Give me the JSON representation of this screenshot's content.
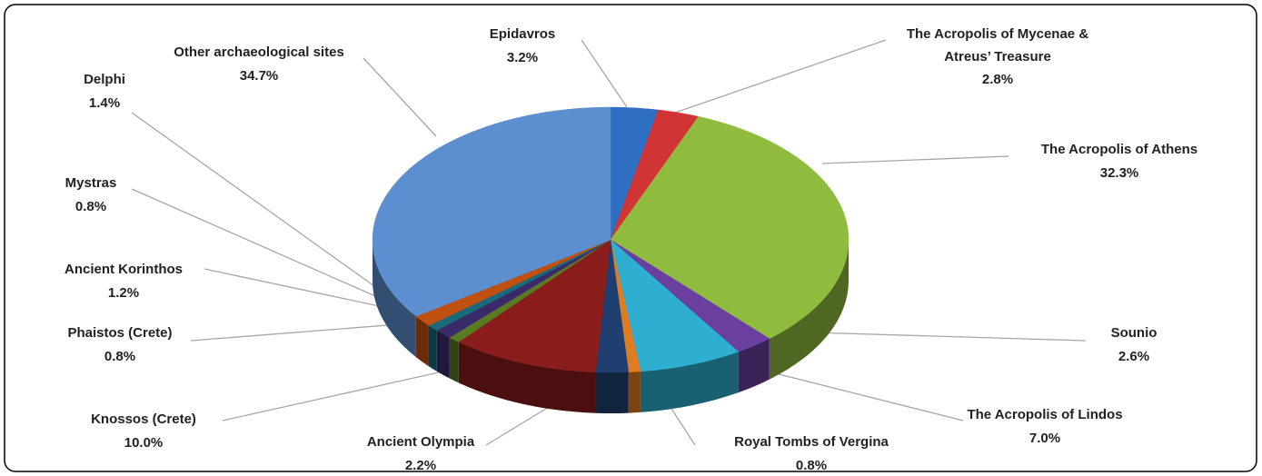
{
  "chart_data": {
    "type": "pie",
    "categories": [
      "Epidavros",
      "The Acropolis of Mycenae & Atreus’ Treasure",
      "The Acropolis of Athens",
      "Sounio",
      "The Acropolis of Lindos",
      "Royal Tombs of Vergina",
      "Ancient Olympia",
      "Knossos (Crete)",
      "Phaistos (Crete)",
      "Ancient Korinthos",
      "Mystras",
      "Delphi",
      "Other archaeological sites"
    ],
    "values": [
      3.2,
      2.8,
      32.3,
      2.6,
      7.0,
      0.8,
      2.2,
      10.0,
      0.8,
      1.2,
      0.8,
      1.4,
      34.7
    ],
    "value_labels": [
      "3.2%",
      "2.8%",
      "32.3%",
      "2.6%",
      "7.0%",
      "0.8%",
      "2.2%",
      "10.0%",
      "0.8%",
      "1.2%",
      "0.8%",
      "1.4%",
      "34.7%"
    ],
    "colors": [
      "#2e6fc4",
      "#d03434",
      "#8fbc3f",
      "#6b3fa0",
      "#2eaed0",
      "#e07b20",
      "#1f3f70",
      "#8b1c1c",
      "#5a7a22",
      "#3a2a6a",
      "#1a6a7a",
      "#c05010",
      "#5b8fd0"
    ]
  }
}
